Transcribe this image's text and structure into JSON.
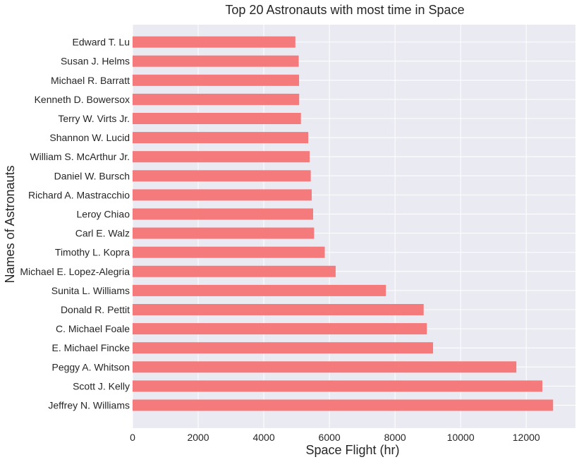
{
  "chart_data": {
    "type": "bar",
    "orientation": "horizontal",
    "title": "Top 20 Astronauts with most time in Space",
    "xlabel": "Space Flight (hr)",
    "ylabel": "Names of Astronauts",
    "xlim": [
      0,
      13500
    ],
    "xticks": [
      "0",
      "2000",
      "4000",
      "6000",
      "8000",
      "10000",
      "12000"
    ],
    "xtick_values": [
      0,
      2000,
      4000,
      6000,
      8000,
      10000,
      12000
    ],
    "grid": true,
    "categories": [
      "Jeffrey N. Williams",
      "Scott J. Kelly",
      "Peggy A. Whitson",
      "E. Michael Fincke",
      "C. Michael Foale",
      "Donald R. Pettit",
      "Sunita L. Williams",
      "Michael E. Lopez-Alegria",
      "Timothy L. Kopra",
      "Carl E. Walz",
      "Leroy Chiao",
      "Richard A. Mastracchio",
      "Daniel W. Bursch",
      "William S. McArthur Jr.",
      "Shannon W. Lucid",
      "Terry W. Virts Jr.",
      "Kenneth D. Bowersox",
      "Michael R. Barratt",
      "Susan J. Helms",
      "Edward T. Lu"
    ],
    "values": [
      12818,
      12490,
      11698,
      9159,
      8970,
      8872,
      7721,
      6190,
      5858,
      5533,
      5503,
      5461,
      5431,
      5398,
      5354,
      5131,
      5078,
      5075,
      5064,
      4962
    ],
    "bar_color": "#f47a7c",
    "background_color": "#eaeaf2"
  }
}
